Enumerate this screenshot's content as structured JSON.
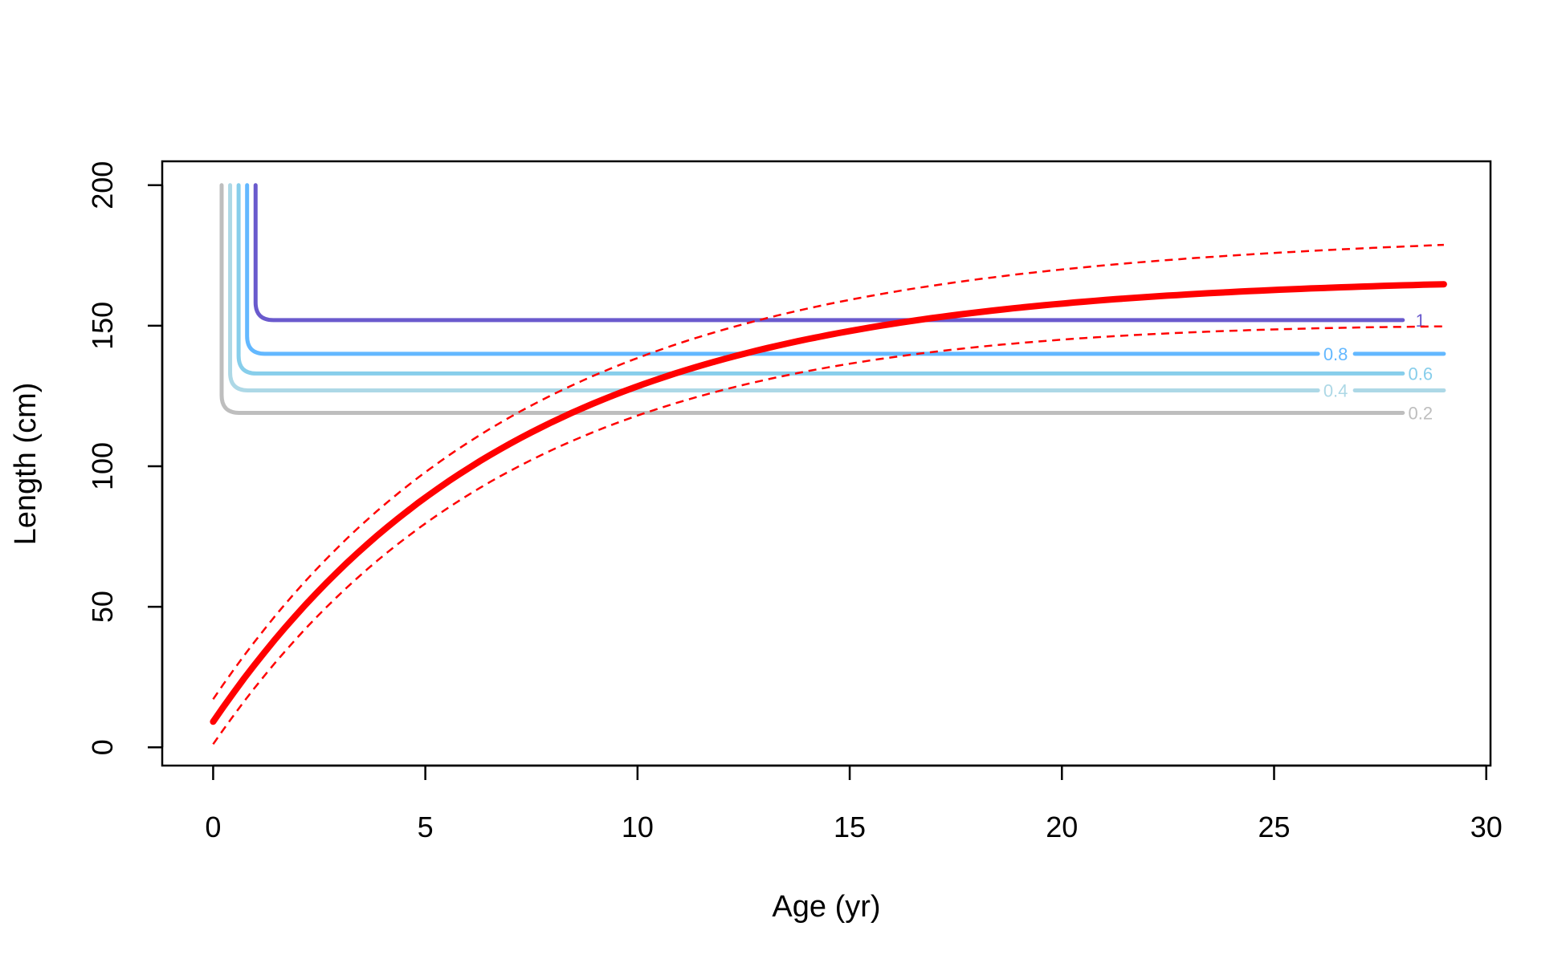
{
  "chart_data": {
    "type": "line",
    "title": "",
    "xlabel": "Age (yr)",
    "ylabel": "Length (cm)",
    "xlim": [
      -1.2,
      30.1
    ],
    "ylim": [
      -6.5,
      208.5
    ],
    "xticks": [
      0,
      5,
      10,
      15,
      20,
      25,
      30
    ],
    "yticks": [
      0,
      50,
      100,
      150,
      200
    ],
    "grid": false,
    "legend": "none",
    "growth_curve": {
      "color": "#ff0000",
      "linf": 167.5,
      "k": 0.14,
      "t0": -0.4,
      "x_range": [
        0,
        29
      ],
      "upper_offset": [
        8,
        14
      ],
      "lower_offset": [
        -8,
        -15
      ],
      "style_mean": "solid",
      "style_bounds": "dashed"
    },
    "contours": [
      {
        "level": "0.2",
        "y_flat": 119,
        "x_vertical": 0.2,
        "x_end": 28.0,
        "label_x": 28.45,
        "color": "#bebebe"
      },
      {
        "level": "0.4",
        "y_flat": 127,
        "x_vertical": 0.4,
        "x_end": 29.0,
        "label_x": 26.45,
        "color": "#add8e6"
      },
      {
        "level": "0.6",
        "y_flat": 133,
        "x_vertical": 0.6,
        "x_end": 28.0,
        "label_x": 28.45,
        "color": "#87ceeb"
      },
      {
        "level": "0.8",
        "y_flat": 140,
        "x_vertical": 0.8,
        "x_end": 29.0,
        "label_x": 26.45,
        "color": "#63b8ff"
      },
      {
        "level": "1",
        "y_flat": 152,
        "x_vertical": 1.0,
        "x_end": 29.0,
        "label_x": 28.45,
        "color": "#6a5acd"
      }
    ]
  }
}
